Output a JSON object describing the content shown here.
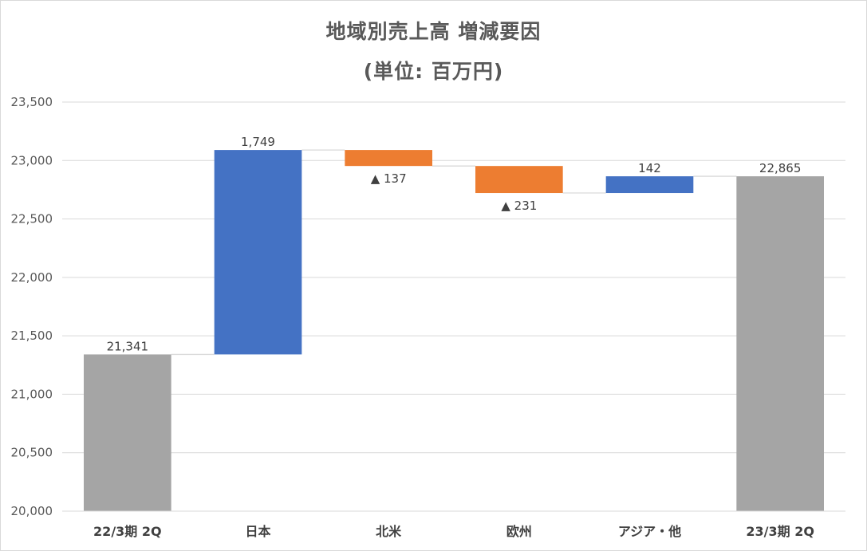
{
  "chart_data": {
    "type": "waterfall",
    "title_line1": "地域別売上高 増減要因",
    "title_line2": "(単位: 百万円)",
    "ylim": [
      20000,
      23500
    ],
    "yticks": [
      20000,
      20500,
      21000,
      21500,
      22000,
      22500,
      23000,
      23500
    ],
    "ytick_labels": [
      "20,000",
      "20,500",
      "21,000",
      "21,500",
      "22,000",
      "22,500",
      "23,000",
      "23,500"
    ],
    "grid": true,
    "categories": [
      "22/3期 2Q",
      "日本",
      "北米",
      "欧州",
      "アジア・他",
      "23/3期 2Q"
    ],
    "bars": [
      {
        "category": "22/3期 2Q",
        "kind": "total",
        "start": 0,
        "end": 21341,
        "label": "21,341",
        "color": "#a5a5a5"
      },
      {
        "category": "日本",
        "kind": "increase",
        "start": 21341,
        "end": 23090,
        "label": "1,749",
        "color": "#4472c4"
      },
      {
        "category": "北米",
        "kind": "decrease",
        "start": 23090,
        "end": 22953,
        "label": "▲ 137",
        "color": "#ed7d31"
      },
      {
        "category": "欧州",
        "kind": "decrease",
        "start": 22953,
        "end": 22722,
        "label": "▲ 231",
        "color": "#ed7d31"
      },
      {
        "category": "アジア・他",
        "kind": "increase",
        "start": 22722,
        "end": 22865,
        "label": "142",
        "color": "#4472c4"
      },
      {
        "category": "23/3期 2Q",
        "kind": "total",
        "start": 0,
        "end": 22865,
        "label": "22,865",
        "color": "#a5a5a5"
      }
    ]
  }
}
